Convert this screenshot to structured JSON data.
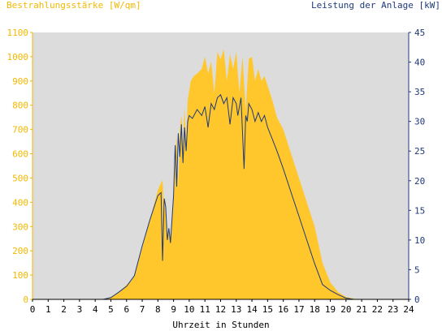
{
  "chart_data": {
    "type": "area",
    "left_axis_label": "Bestrahlungsstärke [W/qm]",
    "right_axis_label": "Leistung der Anlage [kW]",
    "xlabel": "Uhrzeit in Stunden",
    "xlim": [
      0,
      24
    ],
    "x_ticks": [
      "0",
      "1",
      "2",
      "3",
      "4",
      "5",
      "6",
      "7",
      "8",
      "9",
      "10",
      "11",
      "12",
      "13",
      "14",
      "15",
      "16",
      "17",
      "18",
      "19",
      "20",
      "21",
      "22",
      "23",
      "24"
    ],
    "y_left_lim": [
      0,
      1100
    ],
    "y_left_ticks": [
      "0",
      "100",
      "200",
      "300",
      "400",
      "500",
      "600",
      "700",
      "800",
      "900",
      "1000",
      "1100"
    ],
    "y_right_lim": [
      0,
      45
    ],
    "y_right_ticks": [
      "0",
      "5",
      "10",
      "15",
      "20",
      "25",
      "30",
      "35",
      "40",
      "45"
    ],
    "grid": false,
    "colors": {
      "irradiance": "#ffc72c",
      "power": "#1f3a7a",
      "plot_bg": "#dcdcdc",
      "left_axis": "#f2b800",
      "right_axis": "#1f3a7a"
    },
    "series": [
      {
        "name": "Bestrahlungsstärke",
        "axis": "left",
        "kind": "area",
        "x": [
          0,
          4.5,
          5,
          5.5,
          6,
          6.3,
          6.5,
          7,
          7.5,
          8,
          8.2,
          8.3,
          8.4,
          8.5,
          8.6,
          8.7,
          8.8,
          9,
          9.1,
          9.2,
          9.3,
          9.4,
          9.5,
          9.6,
          9.7,
          9.8,
          9.9,
          10,
          10.1,
          10.3,
          10.5,
          10.8,
          11,
          11.2,
          11.4,
          11.6,
          11.8,
          12,
          12.2,
          12.4,
          12.6,
          12.8,
          13,
          13.2,
          13.4,
          13.6,
          13.8,
          14,
          14.2,
          14.4,
          14.6,
          14.8,
          15,
          15.3,
          15.6,
          16,
          16.5,
          17,
          17.5,
          18,
          18.5,
          19,
          19.5,
          20,
          20.5,
          21,
          24
        ],
        "y": [
          0,
          0,
          10,
          30,
          60,
          75,
          100,
          210,
          330,
          450,
          480,
          490,
          350,
          420,
          240,
          300,
          250,
          420,
          550,
          680,
          450,
          700,
          760,
          620,
          790,
          650,
          820,
          860,
          900,
          920,
          930,
          950,
          1000,
          930,
          980,
          850,
          1020,
          990,
          1030,
          900,
          1010,
          950,
          1020,
          850,
          1000,
          780,
          990,
          1000,
          900,
          950,
          900,
          920,
          880,
          820,
          750,
          700,
          600,
          500,
          400,
          300,
          150,
          70,
          30,
          10,
          3,
          0,
          0
        ]
      },
      {
        "name": "Leistung der Anlage",
        "axis": "right",
        "kind": "line",
        "x": [
          0,
          4.5,
          5,
          5.5,
          6,
          6.5,
          7,
          7.5,
          8,
          8.2,
          8.3,
          8.4,
          8.5,
          8.6,
          8.7,
          8.8,
          9,
          9.1,
          9.2,
          9.3,
          9.4,
          9.5,
          9.6,
          9.7,
          9.8,
          9.9,
          10,
          10.2,
          10.5,
          10.8,
          11,
          11.2,
          11.4,
          11.6,
          11.8,
          12,
          12.2,
          12.4,
          12.6,
          12.8,
          13,
          13.1,
          13.3,
          13.5,
          13.6,
          13.7,
          13.8,
          14,
          14.2,
          14.4,
          14.6,
          14.8,
          15,
          15.3,
          15.6,
          16,
          16.5,
          17,
          17.5,
          18,
          18.5,
          19,
          19.5,
          20,
          20.5,
          21,
          24
        ],
        "y": [
          0,
          0,
          0.3,
          1.2,
          2.2,
          4,
          9,
          13.5,
          17.5,
          18,
          6.5,
          17,
          15.5,
          10,
          12,
          9.5,
          17.5,
          26,
          19,
          28,
          24,
          29.5,
          23,
          29,
          25,
          30,
          31,
          30.5,
          32,
          31,
          32.5,
          29,
          33,
          32,
          34,
          34.5,
          33,
          34,
          29.5,
          34,
          33,
          31,
          34,
          22,
          31,
          30,
          33,
          32,
          30,
          31.5,
          30,
          31,
          29,
          27,
          25,
          22,
          18,
          14,
          10,
          6,
          2.5,
          1.5,
          0.8,
          0.2,
          0,
          0,
          0
        ]
      }
    ]
  }
}
